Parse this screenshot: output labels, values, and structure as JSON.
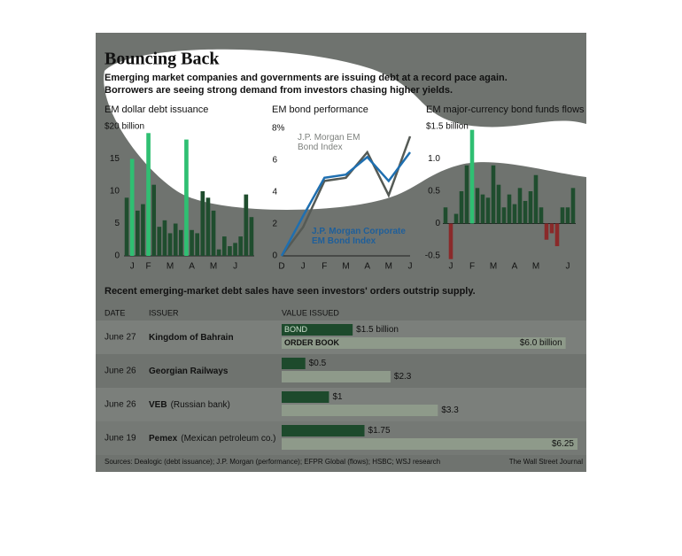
{
  "header": {
    "title": "Bouncing Back",
    "subtitle": [
      "Emerging market companies and governments are issuing debt at a record pace again.",
      "Borrowers are seeing strong demand from investors chasing higher yields."
    ]
  },
  "chart_data": [
    {
      "type": "bar",
      "title": "EM dollar debt issuance",
      "categories": [
        null,
        "J",
        null,
        null,
        "F",
        null,
        null,
        null,
        "M",
        null,
        null,
        null,
        "A",
        null,
        null,
        null,
        "M",
        null,
        null,
        null,
        "J",
        null,
        null,
        null
      ],
      "values": [
        9,
        15,
        7,
        8,
        19,
        11,
        4.5,
        5.5,
        3.5,
        5,
        4,
        18,
        4,
        3.5,
        10,
        9,
        7,
        1,
        3,
        1.5,
        2,
        3,
        9.5,
        6
      ],
      "colors": [
        "#1f4d2e",
        "#2fbf72",
        "#1f4d2e",
        "#1f4d2e",
        "#2fbf72",
        "#1f4d2e",
        "#1f4d2e",
        "#1f4d2e",
        "#1f4d2e",
        "#1f4d2e",
        "#1f4d2e",
        "#2fbf72",
        "#1f4d2e",
        "#1f4d2e",
        "#1f4d2e",
        "#1f4d2e",
        "#1f4d2e",
        "#1f4d2e",
        "#1f4d2e",
        "#1f4d2e",
        "#1f4d2e",
        "#1f4d2e",
        "#1f4d2e",
        "#1f4d2e"
      ],
      "ylim": [
        0,
        20
      ],
      "yticks": [
        0,
        5,
        10,
        15,
        {
          "value": 20,
          "label": "$20 billion"
        }
      ]
    },
    {
      "type": "line",
      "title": "EM bond performance",
      "categories": [
        "D",
        "J",
        "F",
        "M",
        "A",
        "M",
        "J"
      ],
      "series": [
        {
          "name": "J.P. Morgan EM Bond Index",
          "color": "#555a55",
          "values": [
            0,
            1.8,
            4.7,
            4.9,
            6.5,
            3.8,
            7.5
          ]
        },
        {
          "name": "J.P. Morgan Corporate EM Bond Index",
          "color": "#1f6fb0",
          "values": [
            0,
            2.5,
            4.9,
            5.1,
            6.2,
            4.7,
            6.5
          ]
        }
      ],
      "ylim": [
        0,
        8
      ],
      "yticks": [
        0,
        2,
        4,
        6,
        {
          "value": 8,
          "label": "8%"
        }
      ]
    },
    {
      "type": "bar",
      "title": "EM major-currency bond funds flows",
      "categories": [
        null,
        "J",
        null,
        null,
        null,
        "F",
        null,
        null,
        null,
        "M",
        null,
        null,
        null,
        "A",
        null,
        null,
        null,
        "M",
        null,
        null,
        null,
        null,
        null,
        "J",
        null
      ],
      "values": [
        0.25,
        -0.55,
        0.15,
        0.5,
        0.9,
        1.45,
        0.55,
        0.45,
        0.4,
        0.9,
        0.6,
        0.25,
        0.45,
        0.3,
        0.55,
        0.35,
        0.5,
        0.75,
        0.25,
        -0.25,
        -0.15,
        -0.35,
        0.25,
        0.25,
        0.55
      ],
      "colors": [
        "#1f4d2e",
        "#8a2a2a",
        "#1f4d2e",
        "#1f4d2e",
        "#1f4d2e",
        "#2fbf72",
        "#1f4d2e",
        "#1f4d2e",
        "#1f4d2e",
        "#1f4d2e",
        "#1f4d2e",
        "#1f4d2e",
        "#1f4d2e",
        "#1f4d2e",
        "#1f4d2e",
        "#1f4d2e",
        "#1f4d2e",
        "#1f4d2e",
        "#1f4d2e",
        "#8a2a2a",
        "#8a2a2a",
        "#8a2a2a",
        "#1f4d2e",
        "#1f4d2e",
        "#1f4d2e"
      ],
      "ylim": [
        -0.5,
        1.5
      ],
      "yticks": [
        -0.5,
        0,
        0.5,
        {
          "value": 1,
          "label": "1.0"
        },
        {
          "value": 1.5,
          "label": "$1.5 billion"
        }
      ]
    }
  ],
  "table": {
    "intro": "Recent emerging-market debt sales have seen investors' orders outstrip supply.",
    "headers": [
      "DATE",
      "ISSUER",
      "VALUE ISSUED"
    ],
    "bond_label": "BOND",
    "order_label": "ORDER BOOK",
    "bond_color": "#1d4a2c",
    "order_color": "#8e9a8a",
    "rows": [
      {
        "date": "June 27",
        "issuer": "Kingdom of Bahrain",
        "note": null,
        "bond": 1.5,
        "bond_label": "$1.5 billion",
        "order": 6.0,
        "order_label": "$6.0 billion"
      },
      {
        "date": "June 26",
        "issuer": "Georgian Railways",
        "note": null,
        "bond": 0.5,
        "bond_label": "$0.5",
        "order": 2.3,
        "order_label": "$2.3"
      },
      {
        "date": "June 26",
        "issuer": "VEB",
        "note": "(Russian bank)",
        "bond": 1,
        "bond_label": "$1",
        "order": 3.3,
        "order_label": "$3.3"
      },
      {
        "date": "June 19",
        "issuer": "Pemex",
        "note": "(Mexican petroleum co.)",
        "bond": 1.75,
        "bond_label": "$1.75",
        "order": 6.25,
        "order_label": "$6.25"
      }
    ]
  },
  "footer": {
    "sources": "Sources: Dealogic (debt issuance); J.P. Morgan (performance); EFPR Global (flows); HSBC; WSJ research",
    "credit": "The Wall Street Journal"
  }
}
